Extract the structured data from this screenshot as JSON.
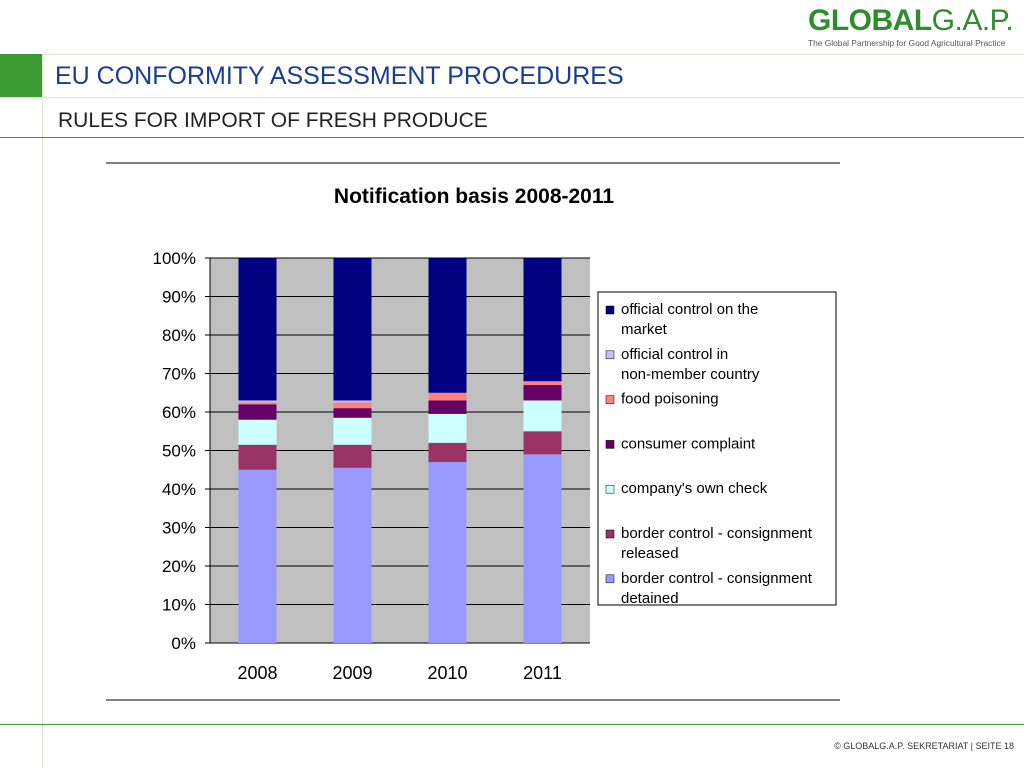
{
  "header": {
    "logo_text_bold": "GLOBAL",
    "logo_text_thin": "G.A.P.",
    "logo_tagline": "The Global Partnership for Good Agricultural Practice",
    "title": "EU CONFORMITY ASSESSMENT PROCEDURES",
    "subtitle": "RULES FOR IMPORT OF FRESH PRODUCE"
  },
  "footer": {
    "text": "© GLOBALG.A.P. SEKRETARIAT | SEITE 18"
  },
  "colors": {
    "brand_green": "#3c9b35",
    "title_blue": "#1a3d8f",
    "plot_bg": "#c0c0c0"
  },
  "chart_data": {
    "type": "bar",
    "stacked": true,
    "title": "Notification basis 2008-2011",
    "xlabel": "",
    "ylabel": "",
    "ylim": [
      0,
      100
    ],
    "yticks": [
      "0%",
      "10%",
      "20%",
      "30%",
      "40%",
      "50%",
      "60%",
      "70%",
      "80%",
      "90%",
      "100%"
    ],
    "categories": [
      "2008",
      "2009",
      "2010",
      "2011"
    ],
    "legend_position": "right",
    "series": [
      {
        "name": "border control - consignment detained",
        "color": "#9999ff",
        "values": [
          45,
          45.5,
          47,
          49
        ]
      },
      {
        "name": "border control - consignment released",
        "color": "#993366",
        "values": [
          6.5,
          6,
          5,
          6
        ]
      },
      {
        "name": "company's own check",
        "color": "#ccffff",
        "values": [
          6.5,
          7,
          7.5,
          8
        ]
      },
      {
        "name": "consumer complaint",
        "color": "#660066",
        "values": [
          4,
          2.5,
          3.5,
          4
        ]
      },
      {
        "name": "food poisoning",
        "color": "#ff8080",
        "values": [
          0.5,
          1.5,
          2,
          1
        ]
      },
      {
        "name": "official control in non-member country",
        "color": "#c0c0ff",
        "values": [
          0.5,
          0.5,
          0,
          0
        ]
      },
      {
        "name": "official control on the market",
        "color": "#000080",
        "values": [
          37,
          37,
          35,
          32
        ]
      }
    ]
  }
}
